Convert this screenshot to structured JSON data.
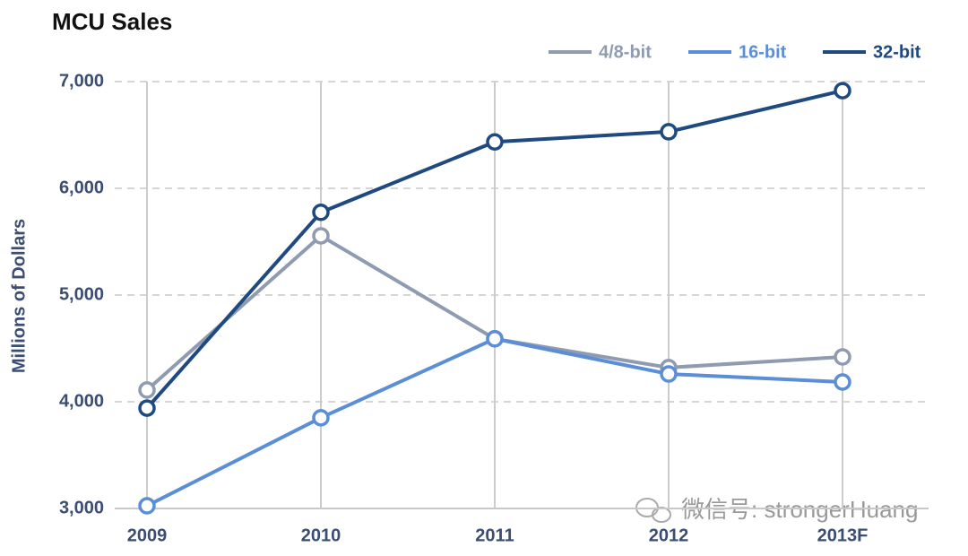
{
  "chart_data": {
    "type": "line",
    "title": "MCU Sales",
    "y_label": "Millions of Dollars",
    "categories": [
      "2009",
      "2010",
      "2011",
      "2012",
      "2013F"
    ],
    "series": [
      {
        "name": "4/8-bit",
        "color": "#8e9bb0",
        "values": [
          4110,
          5555,
          4590,
          4320,
          4420
        ]
      },
      {
        "name": "16-bit",
        "color": "#5b8ed6",
        "values": [
          3025,
          3850,
          4590,
          4260,
          4185
        ]
      },
      {
        "name": "32-bit",
        "color": "#1f4a80",
        "values": [
          3940,
          5775,
          6435,
          6530,
          6915
        ]
      }
    ],
    "ylim": [
      3000,
      7000
    ],
    "yticks": [
      {
        "value": 3000,
        "label": "3,000"
      },
      {
        "value": 4000,
        "label": "4,000"
      },
      {
        "value": 5000,
        "label": "5,000"
      },
      {
        "value": 6000,
        "label": "6,000"
      },
      {
        "value": 7000,
        "label": "7,000"
      }
    ],
    "grid": true,
    "legend": "top-right",
    "watermark": "微信号: strongerHuang"
  }
}
